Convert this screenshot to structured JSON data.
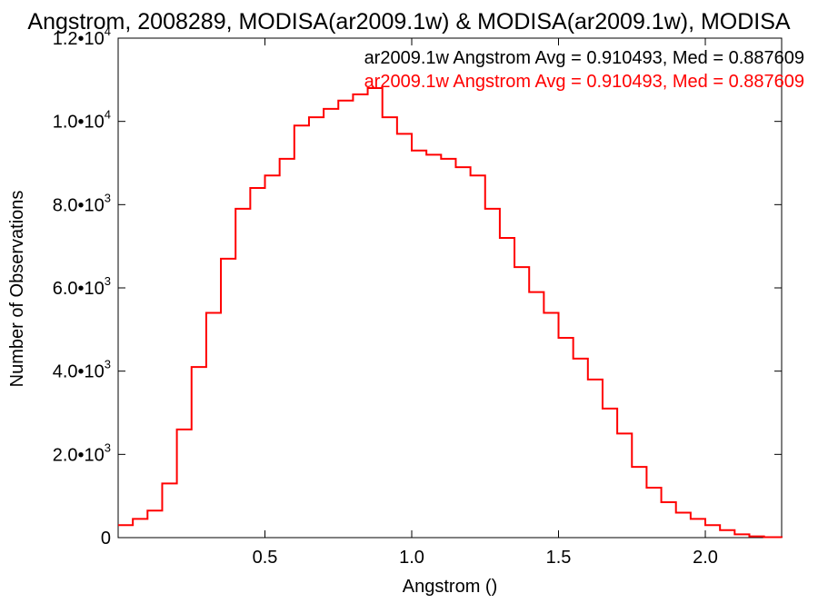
{
  "chart_data": {
    "type": "line",
    "title": "Angstrom, 2008289, MODISA(ar2009.1w) & MODISA(ar2009.1w), MODISA",
    "xlabel": "Angstrom ()",
    "ylabel": "Number of Observations",
    "xlim": [
      0.0,
      2.26
    ],
    "ylim": [
      0,
      12000
    ],
    "x_ticks": [
      0.5,
      1.0,
      1.5,
      2.0
    ],
    "x_tick_labels": [
      "0.5",
      "1.0",
      "1.5",
      "2.0"
    ],
    "y_ticks": [
      0,
      2000,
      4000,
      6000,
      8000,
      10000,
      12000
    ],
    "y_tick_labels": [
      {
        "mantissa": "0",
        "exp": ""
      },
      {
        "mantissa": "2.0•10",
        "exp": "3"
      },
      {
        "mantissa": "4.0•10",
        "exp": "3"
      },
      {
        "mantissa": "6.0•10",
        "exp": "3"
      },
      {
        "mantissa": "8.0•10",
        "exp": "3"
      },
      {
        "mantissa": "1.0•10",
        "exp": "4"
      },
      {
        "mantissa": "1.2•10",
        "exp": "4"
      }
    ],
    "grid": false,
    "legend": [
      {
        "text": "ar2009.1w Angstrom Avg = 0.910493, Med = 0.887609",
        "color": "#000000"
      },
      {
        "text": "ar2009.1w Angstrom Avg = 0.910493, Med = 0.887609",
        "color": "#ff0000"
      }
    ],
    "series": [
      {
        "style": "step",
        "color": "#ff0000",
        "x": [
          0.0,
          0.05,
          0.1,
          0.15,
          0.2,
          0.25,
          0.3,
          0.35,
          0.4,
          0.45,
          0.5,
          0.55,
          0.6,
          0.65,
          0.7,
          0.75,
          0.8,
          0.85,
          0.9,
          0.95,
          1.0,
          1.05,
          1.1,
          1.15,
          1.2,
          1.25,
          1.3,
          1.35,
          1.4,
          1.45,
          1.5,
          1.55,
          1.6,
          1.65,
          1.7,
          1.75,
          1.8,
          1.85,
          1.9,
          1.95,
          2.0,
          2.05,
          2.1,
          2.15,
          2.2,
          2.26
        ],
        "y": [
          300,
          450,
          650,
          1300,
          2600,
          4100,
          5400,
          6700,
          7900,
          8400,
          8700,
          9100,
          9900,
          10100,
          10300,
          10500,
          10650,
          10800,
          10100,
          9700,
          9300,
          9200,
          9100,
          8900,
          8700,
          7900,
          7200,
          6500,
          5900,
          5400,
          4800,
          4300,
          3800,
          3100,
          2500,
          1700,
          1200,
          850,
          600,
          450,
          300,
          180,
          80,
          30,
          10,
          0
        ]
      }
    ]
  }
}
